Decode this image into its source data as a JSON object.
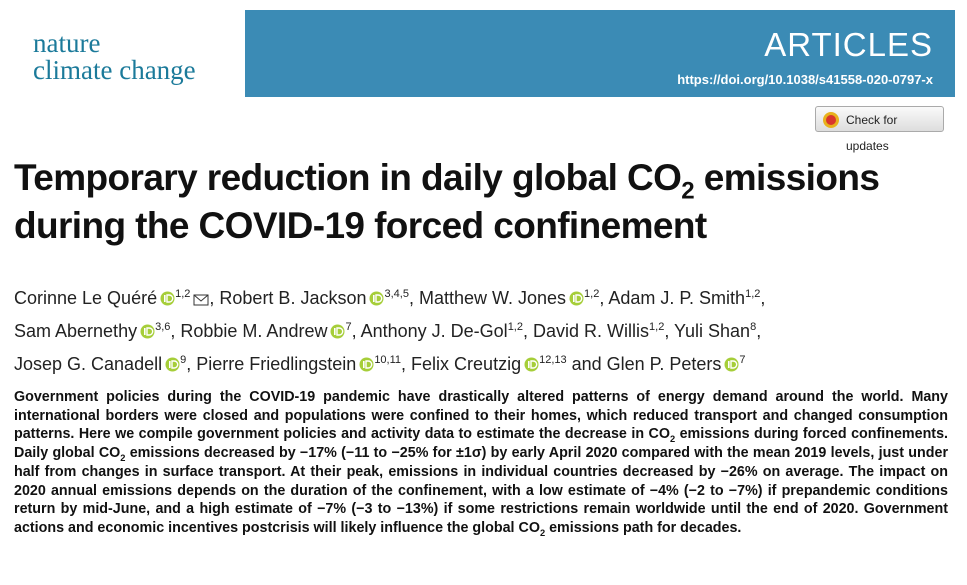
{
  "header": {
    "journal": {
      "line1": "nature",
      "line2": "climate change"
    },
    "section": "ARTICLES",
    "doi": "https://doi.org/10.1038/s41558-020-0797-x",
    "button": "Check for updates"
  },
  "title": {
    "lines": [
      [
        {
          "t": "Temporary reduction in daily global CO"
        },
        {
          "sub": "2"
        },
        {
          "t": " emissions"
        }
      ],
      [
        {
          "t": "during the COVID-19 forced confinement"
        }
      ]
    ]
  },
  "authors": [
    {
      "name": "Corinne Le Quéré",
      "aff": "1,2",
      "orcid": true,
      "corresponding": true,
      "sep": ", "
    },
    {
      "name": "Robert B. Jackson",
      "aff": "3,4,5",
      "orcid": true,
      "sep": ", "
    },
    {
      "name": "Matthew W. Jones",
      "aff": "1,2",
      "orcid": true,
      "sep": ", "
    },
    {
      "name": "Adam J. P. Smith",
      "aff": "1,2",
      "orcid": false,
      "sep": ", "
    },
    {
      "name": "Sam Abernethy",
      "aff": "3,6",
      "orcid": true,
      "sep": ", "
    },
    {
      "name": "Robbie M. Andrew",
      "aff": "7",
      "orcid": true,
      "sep": ", "
    },
    {
      "name": "Anthony J. De-Gol",
      "aff": "1,2",
      "orcid": false,
      "sep": ", "
    },
    {
      "name": "David R. Willis",
      "aff": "1,2",
      "orcid": false,
      "sep": ", "
    },
    {
      "name": "Yuli Shan",
      "aff": "8",
      "orcid": false,
      "sep": ", "
    },
    {
      "name": "Josep G. Canadell",
      "aff": "9",
      "orcid": true,
      "sep": ", "
    },
    {
      "name": "Pierre Friedlingstein",
      "aff": "10,11",
      "orcid": true,
      "sep": ", "
    },
    {
      "name": "Felix Creutzig",
      "aff": "12,13",
      "orcid": true,
      "sep": " and "
    },
    {
      "name": "Glen P. Peters",
      "aff": "7",
      "orcid": true
    }
  ],
  "abstract": [
    {
      "t": "Government policies during the COVID-19 pandemic have drastically altered patterns of energy demand around the world. Many international borders were closed and populations were confined to their homes, which reduced transport and changed consumption patterns. Here we compile government policies and activity data to estimate the decrease in CO"
    },
    {
      "sub": "2"
    },
    {
      "t": " emissions during forced confinements. Daily global CO"
    },
    {
      "sub": "2"
    },
    {
      "t": " emissions decreased by −17% (−11 to −25% for ±1σ) by early April 2020 compared with the mean 2019 levels, just under half from changes in surface transport. At their peak, emissions in individual countries decreased by −26% on average. The impact on 2020 annual emissions depends on the duration of the confinement, with a low estimate of −4% (−2 to −7%) if prepandemic conditions return by mid-June, and a high estimate of −7% (−3 to −13%) if some restrictions remain worldwide until the end of 2020. Government actions and economic incentives postcrisis will likely influence the global CO"
    },
    {
      "sub": "2"
    },
    {
      "t": " emissions path for decades."
    }
  ]
}
